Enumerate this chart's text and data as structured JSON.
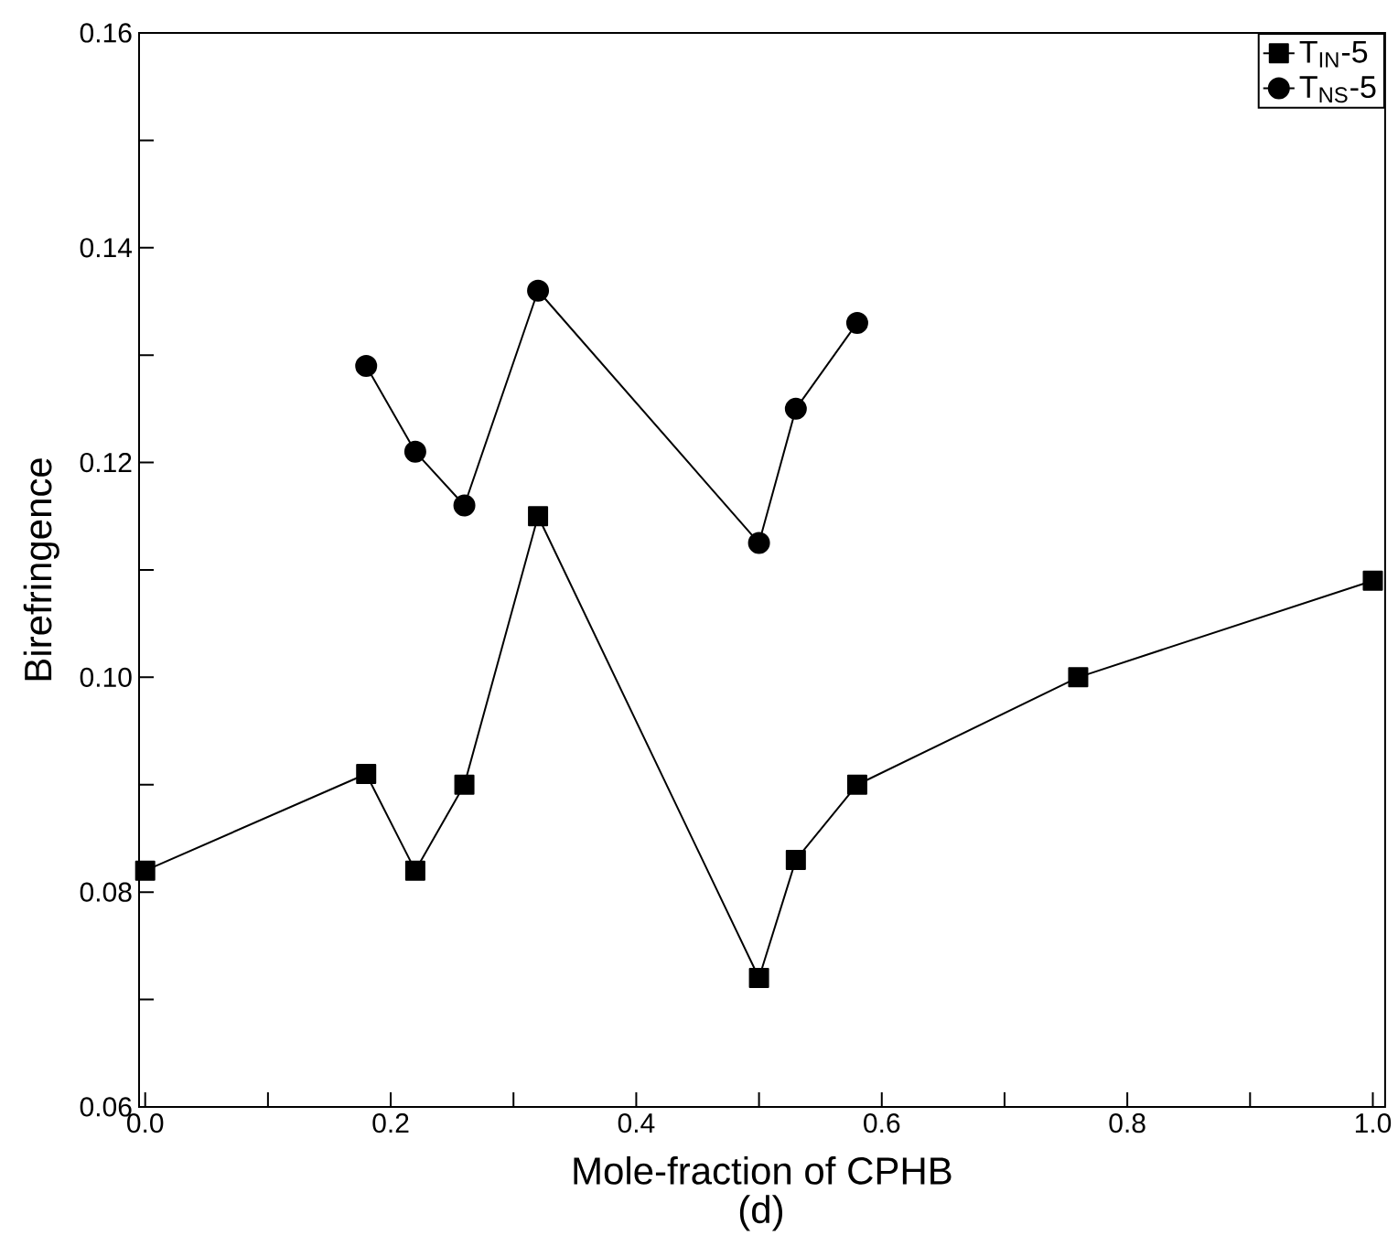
{
  "chart_data": {
    "type": "line",
    "xlabel": "Mole-fraction of CPHB",
    "ylabel": "Birefringence",
    "annotations": [
      "(d)"
    ],
    "xlim": [
      -0.005,
      1.01
    ],
    "ylim": [
      0.06,
      0.16
    ],
    "xticks": [
      {
        "value": 0.0,
        "label": "0.0"
      },
      {
        "value": 0.1,
        "label": null
      },
      {
        "value": 0.2,
        "label": "0.2"
      },
      {
        "value": 0.3,
        "label": null
      },
      {
        "value": 0.4,
        "label": "0.4"
      },
      {
        "value": 0.5,
        "label": null
      },
      {
        "value": 0.6,
        "label": "0.6"
      },
      {
        "value": 0.7,
        "label": null
      },
      {
        "value": 0.8,
        "label": "0.8"
      },
      {
        "value": 0.9,
        "label": null
      },
      {
        "value": 1.0,
        "label": "1.0"
      }
    ],
    "yticks": [
      {
        "value": 0.06,
        "label": "0.06"
      },
      {
        "value": 0.07,
        "label": null
      },
      {
        "value": 0.08,
        "label": "0.08"
      },
      {
        "value": 0.09,
        "label": null
      },
      {
        "value": 0.1,
        "label": "0.10"
      },
      {
        "value": 0.11,
        "label": null
      },
      {
        "value": 0.12,
        "label": "0.12"
      },
      {
        "value": 0.13,
        "label": null
      },
      {
        "value": 0.14,
        "label": "0.14"
      },
      {
        "value": 0.15,
        "label": null
      },
      {
        "value": 0.16,
        "label": "0.16"
      }
    ],
    "legend": "top right",
    "grid": false,
    "line_style": "solid",
    "series": [
      {
        "name": "T$_{IN}$-5",
        "color": "#000000",
        "marker": "square",
        "x": [
          0.0,
          0.18,
          0.22,
          0.26,
          0.32,
          0.5,
          0.53,
          0.58,
          0.76,
          1.0
        ],
        "values": [
          0.082,
          0.091,
          0.082,
          0.09,
          0.115,
          0.072,
          0.083,
          0.09,
          0.1,
          0.109
        ]
      },
      {
        "name": "T$_{NS}$-5",
        "color": "#000000",
        "marker": "circle",
        "x": [
          0.18,
          0.22,
          0.26,
          0.32,
          0.5,
          0.53,
          0.58
        ],
        "values": [
          0.129,
          0.121,
          0.116,
          0.136,
          0.1125,
          0.125,
          0.133
        ]
      }
    ]
  }
}
